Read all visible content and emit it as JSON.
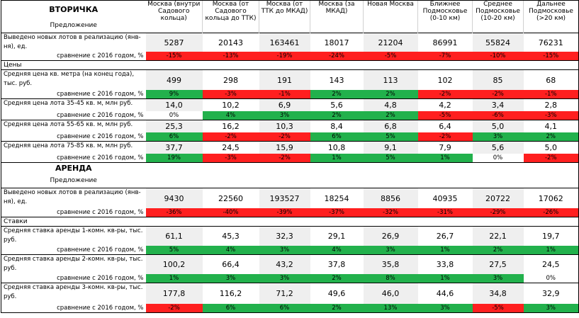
{
  "sections": {
    "resale": {
      "title": "ВТОРИЧКА",
      "subtitle": "Предложение"
    },
    "rent": {
      "title": "АРЕНДА",
      "subtitle": "Предложение"
    }
  },
  "columns": [
    "Москва (внутри Садового кольца)",
    "Москва (от Садового кольца до ТТК)",
    "Москва (от ТТК до МКАД)",
    "Москва (за МКАД)",
    "Новая Москва",
    "Ближнее Подмосковье (0-10 км)",
    "Среднее Подмосковье (10-20 км)",
    "Дальнее Подмосковье (>20 км)"
  ],
  "comparison_label": "сравнение с 2016 годом, %",
  "subsections": {
    "prices": "Цены",
    "rates": "Ставки"
  },
  "resale_rows": [
    {
      "label": "Выведено новых лотов в реализацию (янв-ня), ед.",
      "values": [
        "5287",
        "20143",
        "163461",
        "18017",
        "21204",
        "86991",
        "55824",
        "76231"
      ],
      "changes": [
        "-15%",
        "-13%",
        "-19%",
        "-24%",
        "-5%",
        "-7%",
        "-10%",
        "-15%"
      ],
      "change_colors": [
        "red",
        "red",
        "red",
        "red",
        "red",
        "red",
        "red",
        "red"
      ]
    },
    {
      "label": "Средняя цена кв. метра (на конец года), тыс. руб.",
      "values": [
        "499",
        "298",
        "191",
        "143",
        "113",
        "102",
        "85",
        "68"
      ],
      "changes": [
        "9%",
        "-3%",
        "-1%",
        "2%",
        "2%",
        "-2%",
        "-2%",
        "-1%"
      ],
      "change_colors": [
        "green",
        "red",
        "red",
        "green",
        "green",
        "red",
        "red",
        "red"
      ]
    },
    {
      "label": "Средняя цена лота 35-45 кв. м, млн руб.",
      "values": [
        "14,0",
        "10,2",
        "6,9",
        "5,6",
        "4,8",
        "4,2",
        "3,4",
        "2,8"
      ],
      "changes": [
        "0%",
        "4%",
        "3%",
        "2%",
        "2%",
        "-5%",
        "-6%",
        "-3%"
      ],
      "change_colors": [
        "white",
        "green",
        "green",
        "green",
        "green",
        "red",
        "red",
        "red"
      ]
    },
    {
      "label": "Средняя цена лота 55-65 кв. м, млн руб.",
      "values": [
        "25,3",
        "16,2",
        "10,3",
        "8,4",
        "6,8",
        "6,4",
        "5,0",
        "4,1"
      ],
      "changes": [
        "6%",
        "-2%",
        "-2%",
        "6%",
        "5%",
        "-2%",
        "3%",
        "2%"
      ],
      "change_colors": [
        "green",
        "red",
        "red",
        "green",
        "green",
        "red",
        "green",
        "green"
      ]
    },
    {
      "label": "Средняя цена лота 75-85 кв. м, млн руб.",
      "values": [
        "37,7",
        "24,5",
        "15,9",
        "10,8",
        "9,1",
        "7,9",
        "5,6",
        "5,0"
      ],
      "changes": [
        "19%",
        "-3%",
        "-2%",
        "1%",
        "5%",
        "1%",
        "0%",
        "-2%"
      ],
      "change_colors": [
        "green",
        "red",
        "red",
        "green",
        "green",
        "green",
        "white",
        "red"
      ]
    }
  ],
  "rent_rows": [
    {
      "label": "Выведено новых лотов в реализацию (янв-ня), ед.",
      "values": [
        "9430",
        "22560",
        "193527",
        "18254",
        "8856",
        "40935",
        "20722",
        "17062"
      ],
      "changes": [
        "-36%",
        "-40%",
        "-39%",
        "-37%",
        "-32%",
        "-31%",
        "-29%",
        "-26%"
      ],
      "change_colors": [
        "red",
        "red",
        "red",
        "red",
        "red",
        "red",
        "red",
        "red"
      ]
    },
    {
      "label": "Средняя ставка аренды 1-комн. кв-ры, тыс. руб.",
      "values": [
        "61,1",
        "45,3",
        "32,3",
        "29,1",
        "26,9",
        "26,7",
        "22,1",
        "19,7"
      ],
      "changes": [
        "5%",
        "4%",
        "3%",
        "4%",
        "3%",
        "1%",
        "2%",
        "1%"
      ],
      "change_colors": [
        "green",
        "green",
        "green",
        "green",
        "green",
        "green",
        "green",
        "green"
      ]
    },
    {
      "label": "Средняя ставка аренды 2-комн. кв-ры, тыс. руб.",
      "values": [
        "100,2",
        "66,4",
        "43,2",
        "37,8",
        "35,8",
        "33,8",
        "27,5",
        "24,5"
      ],
      "changes": [
        "1%",
        "3%",
        "3%",
        "2%",
        "8%",
        "1%",
        "3%",
        "0%"
      ],
      "change_colors": [
        "green",
        "green",
        "green",
        "green",
        "green",
        "green",
        "green",
        "white"
      ]
    },
    {
      "label": "Средняя ставка аренды 3-комн. кв-ры, тыс. руб.",
      "values": [
        "177,8",
        "116,2",
        "71,2",
        "49,6",
        "46,0",
        "44,6",
        "34,8",
        "32,9"
      ],
      "changes": [
        "-2%",
        "6%",
        "6%",
        "2%",
        "13%",
        "3%",
        "-5%",
        "3%"
      ],
      "change_colors": [
        "red",
        "green",
        "green",
        "green",
        "green",
        "green",
        "red",
        "green"
      ]
    }
  ],
  "colors": {
    "red": "#ff1f1f",
    "green": "#22b14c",
    "grey": "#efefef"
  }
}
